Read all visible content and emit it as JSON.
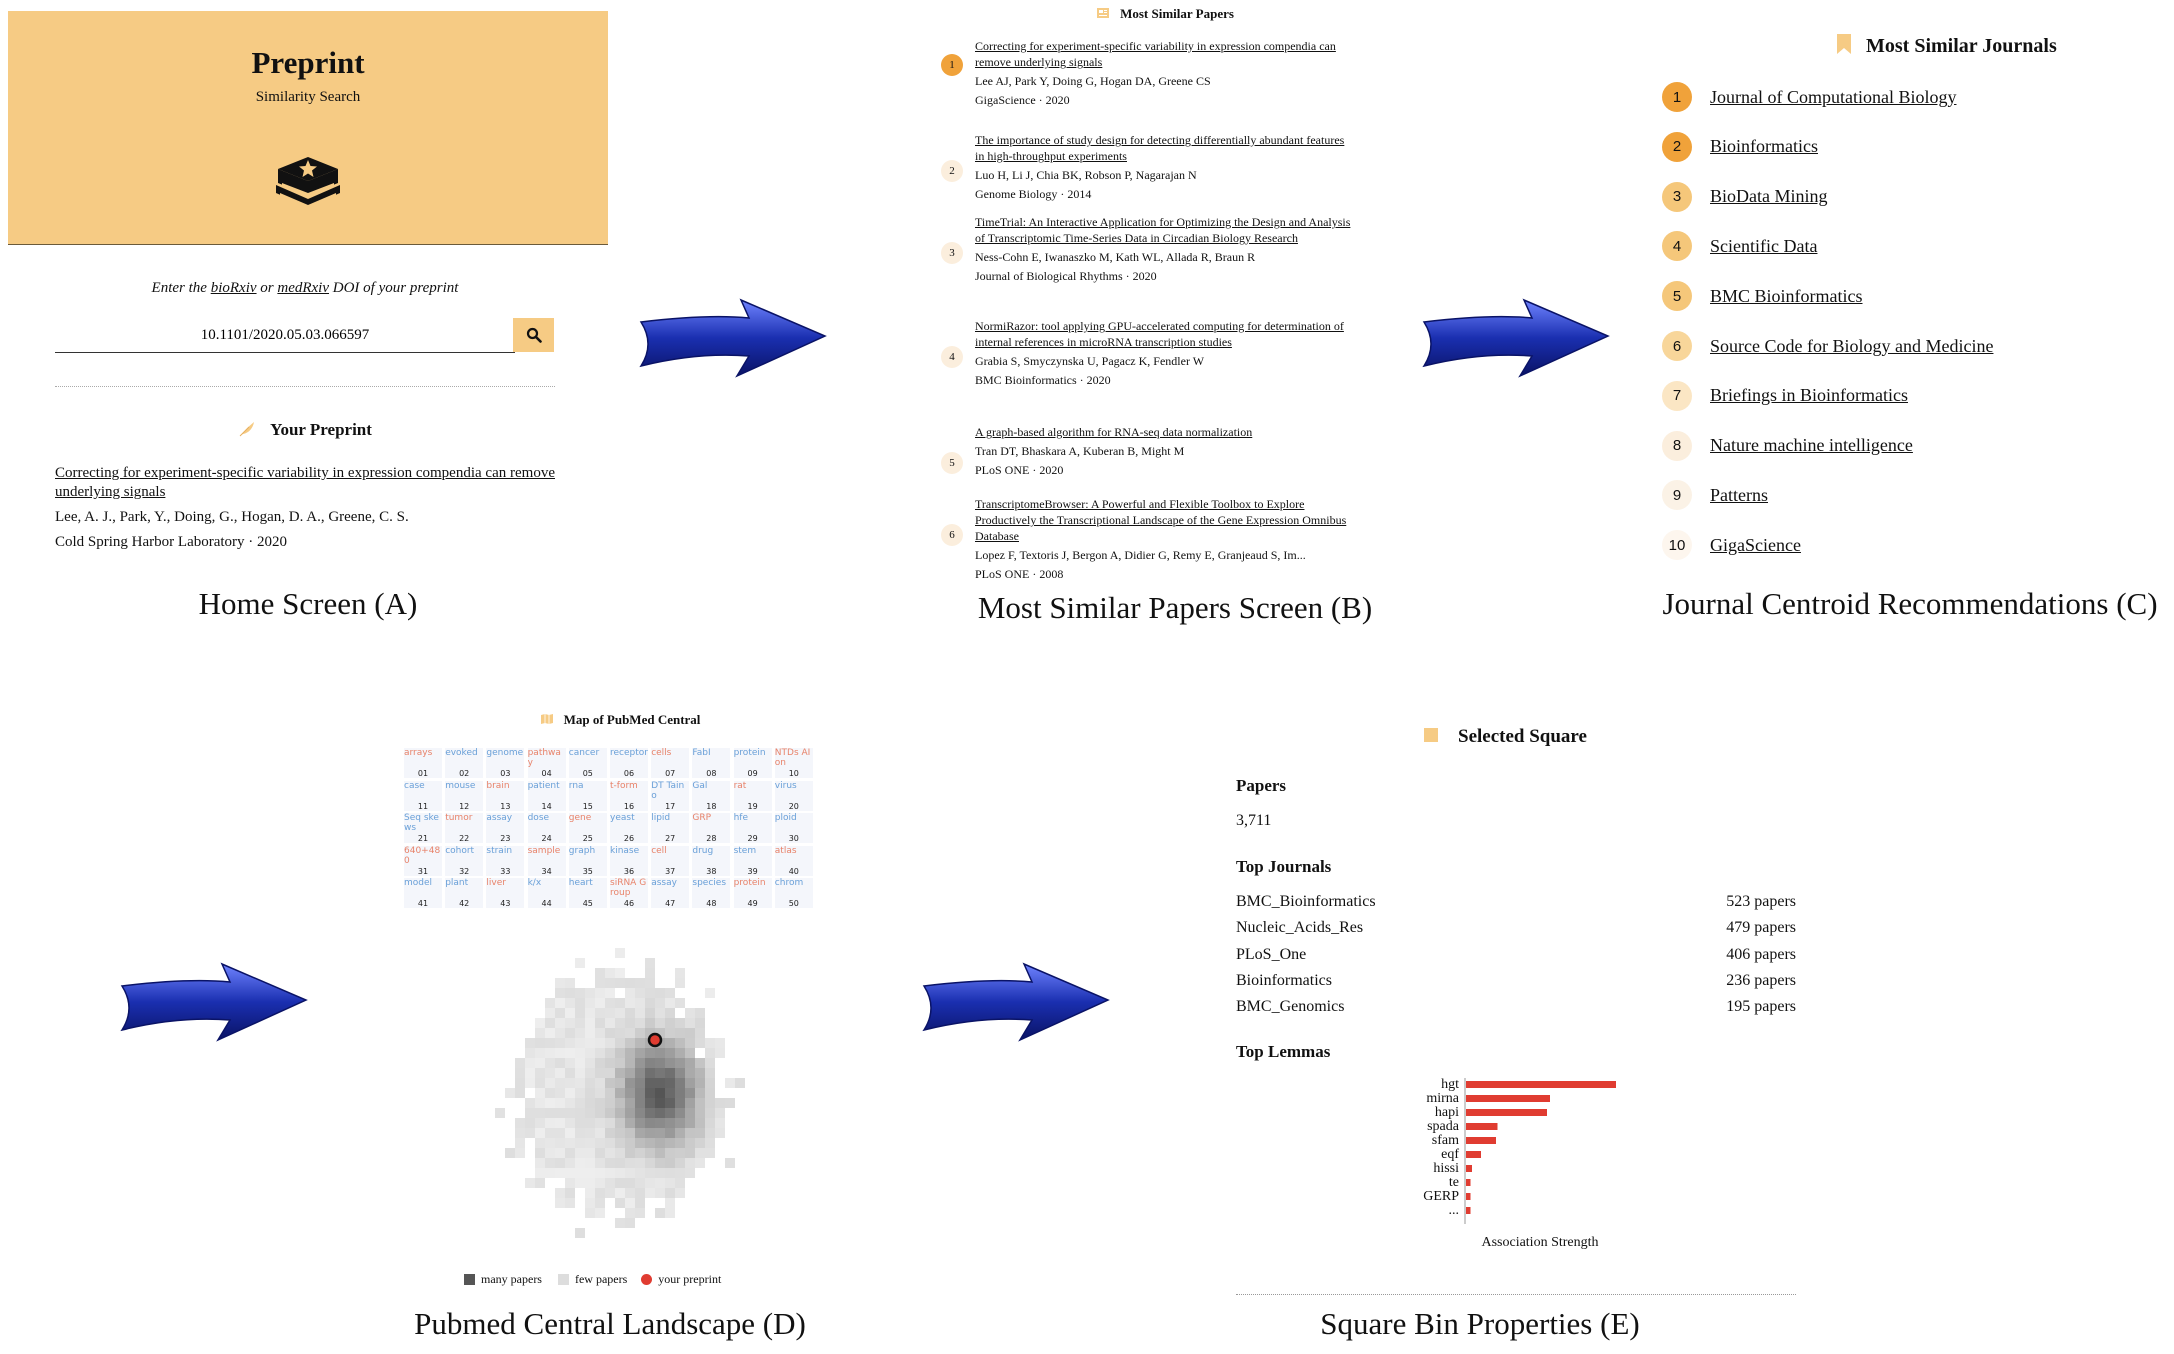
{
  "panel_a": {
    "app_title": "Preprint",
    "app_subtitle": "Similarity Search",
    "doi_prompt_prefix": "Enter the ",
    "doi_prompt_link1": "bioRxiv",
    "doi_prompt_mid": " or ",
    "doi_prompt_link2": "medRxiv",
    "doi_prompt_suffix": " DOI of your preprint",
    "doi_value": "10.1101/2020.05.03.066597",
    "your_preprint_heading": "Your Preprint",
    "preprint_title": "Correcting for experiment-specific variability in expression compendia can remove underlying signals",
    "preprint_authors": "Lee, A. J., Park, Y., Doing, G., Hogan, D. A., Greene, C. S.",
    "preprint_source": "Cold Spring Harbor Laboratory · 2020",
    "caption": "Home Screen (A)"
  },
  "panel_b": {
    "heading": "Most Similar Papers",
    "caption": "Most Similar Papers Screen (B)",
    "papers": [
      {
        "num": "1",
        "title": "Correcting for experiment-specific variability in expression compendia can remove underlying signals",
        "authors": "Lee AJ, Park Y, Doing G, Hogan DA, Greene CS",
        "source": "GigaScience · 2020"
      },
      {
        "num": "2",
        "title": "The importance of study design for detecting differentially abundant features in high-throughput experiments",
        "authors": "Luo H, Li J, Chia BK, Robson P, Nagarajan N",
        "source": "Genome Biology · 2014"
      },
      {
        "num": "3",
        "title": "TimeTrial: An Interactive Application for Optimizing the Design and Analysis of Transcriptomic Time-Series Data in Circadian Biology Research",
        "authors": "Ness-Cohn E, Iwanaszko M, Kath WL, Allada R, Braun R",
        "source": "Journal of Biological Rhythms · 2020"
      },
      {
        "num": "4",
        "title": "NormiRazor: tool applying GPU-accelerated computing for determination of internal references in microRNA transcription studies",
        "authors": "Grabia S, Smyczynska U, Pagacz K, Fendler W",
        "source": "BMC Bioinformatics · 2020"
      },
      {
        "num": "5",
        "title": "A graph-based algorithm for RNA-seq data normalization",
        "authors": "Tran DT, Bhaskara A, Kuberan B, Might M",
        "source": "PLoS ONE · 2020"
      },
      {
        "num": "6",
        "title": "TranscriptomeBrowser: A Powerful and Flexible Toolbox to Explore Productively the Transcriptional Landscape of the Gene Expression Omnibus Database",
        "authors": "Lopez F, Textoris J, Bergon A, Didier G, Remy E, Granjeaud S, Im...",
        "source": "PLoS ONE · 2008"
      }
    ]
  },
  "panel_c": {
    "heading": "Most Similar Journals",
    "caption": "Journal Centroid Recommendations (C)",
    "journals": [
      {
        "num": "1",
        "name": "Journal of Computational Biology"
      },
      {
        "num": "2",
        "name": "Bioinformatics"
      },
      {
        "num": "3",
        "name": "BioData Mining"
      },
      {
        "num": "4",
        "name": "Scientific Data"
      },
      {
        "num": "5",
        "name": "BMC Bioinformatics"
      },
      {
        "num": "6",
        "name": "Source Code for Biology and Medicine"
      },
      {
        "num": "7",
        "name": "Briefings in Bioinformatics"
      },
      {
        "num": "8",
        "name": "Nature machine intelligence"
      },
      {
        "num": "9",
        "name": "Patterns"
      },
      {
        "num": "10",
        "name": "GigaScience"
      }
    ]
  },
  "panel_d": {
    "heading": "Map of PubMed Central",
    "caption": "Pubmed Central Landscape (D)",
    "tile_numbers": [
      "01",
      "02",
      "03",
      "04",
      "05",
      "06",
      "07",
      "08",
      "09",
      "10",
      "11",
      "12",
      "13",
      "14",
      "15",
      "16",
      "17",
      "18",
      "19",
      "20",
      "21",
      "22",
      "23",
      "24",
      "25",
      "26",
      "27",
      "28",
      "29",
      "30",
      "31",
      "32",
      "33",
      "34",
      "35",
      "36",
      "37",
      "38",
      "39",
      "40",
      "41",
      "42",
      "43",
      "44",
      "45",
      "46",
      "47",
      "48",
      "49",
      "50"
    ],
    "tile_words": [
      "arrays",
      "evoked",
      "genome",
      "pathway",
      "cancer",
      "receptor",
      "cells",
      "FabI",
      "protein",
      "NTDs AIon",
      "case",
      "mouse",
      "brain",
      "patient",
      "rna",
      "t-form",
      "DT Taino",
      "Gal",
      "rat",
      "virus",
      "Seq skews",
      "tumor",
      "assay",
      "dose",
      "gene",
      "yeast",
      "lipid",
      "GRP",
      "hfe",
      "ploid",
      "640+480",
      "cohort",
      "strain",
      "sample",
      "graph",
      "kinase",
      "cell",
      "drug",
      "stem",
      "atlas",
      "model",
      "plant",
      "liver",
      "k/x",
      "heart",
      "siRNA Group",
      "assay",
      "species",
      "protein",
      "chrom"
    ],
    "legend_many": "many papers",
    "legend_few": "few papers",
    "legend_yours": "your preprint"
  },
  "panel_e": {
    "heading": "Selected Square",
    "papers_label": "Papers",
    "papers_count": "3,711",
    "top_journals_label": "Top Journals",
    "journals": [
      {
        "name": "BMC_Bioinformatics",
        "count": "523 papers"
      },
      {
        "name": "Nucleic_Acids_Res",
        "count": "479 papers"
      },
      {
        "name": "PLoS_One",
        "count": "406 papers"
      },
      {
        "name": "Bioinformatics",
        "count": "236 papers"
      },
      {
        "name": "BMC_Genomics",
        "count": "195 papers"
      }
    ],
    "top_lemmas_label": "Top Lemmas",
    "caption": "Square Bin Properties (E)"
  },
  "chart_data": {
    "type": "bar",
    "orientation": "horizontal",
    "categories": [
      "hgt",
      "mirna",
      "hapi",
      "spada",
      "sfam",
      "eqf",
      "hissi",
      "te",
      "GERP",
      "..."
    ],
    "values": [
      1.0,
      0.56,
      0.54,
      0.21,
      0.2,
      0.1,
      0.04,
      0.03,
      0.03,
      0.03
    ],
    "xlabel": "Association Strength",
    "color": "#e03c31"
  },
  "colors": {
    "accent": "#f6cb84",
    "rank_1_2": "#f0a23a",
    "rank_mid": "#f5c77a",
    "rank_low": "#fbeedd",
    "arrow_blue": "#1a2fb0",
    "bar_red": "#e03c31",
    "preprint_dot": "#e03c31"
  },
  "icons": {
    "book": "book-star-icon",
    "search": "search-icon",
    "feather": "feather-icon",
    "bookmark": "bookmark-icon",
    "map": "map-icon",
    "square": "square-icon",
    "arrow": "right-arrow-icon"
  }
}
